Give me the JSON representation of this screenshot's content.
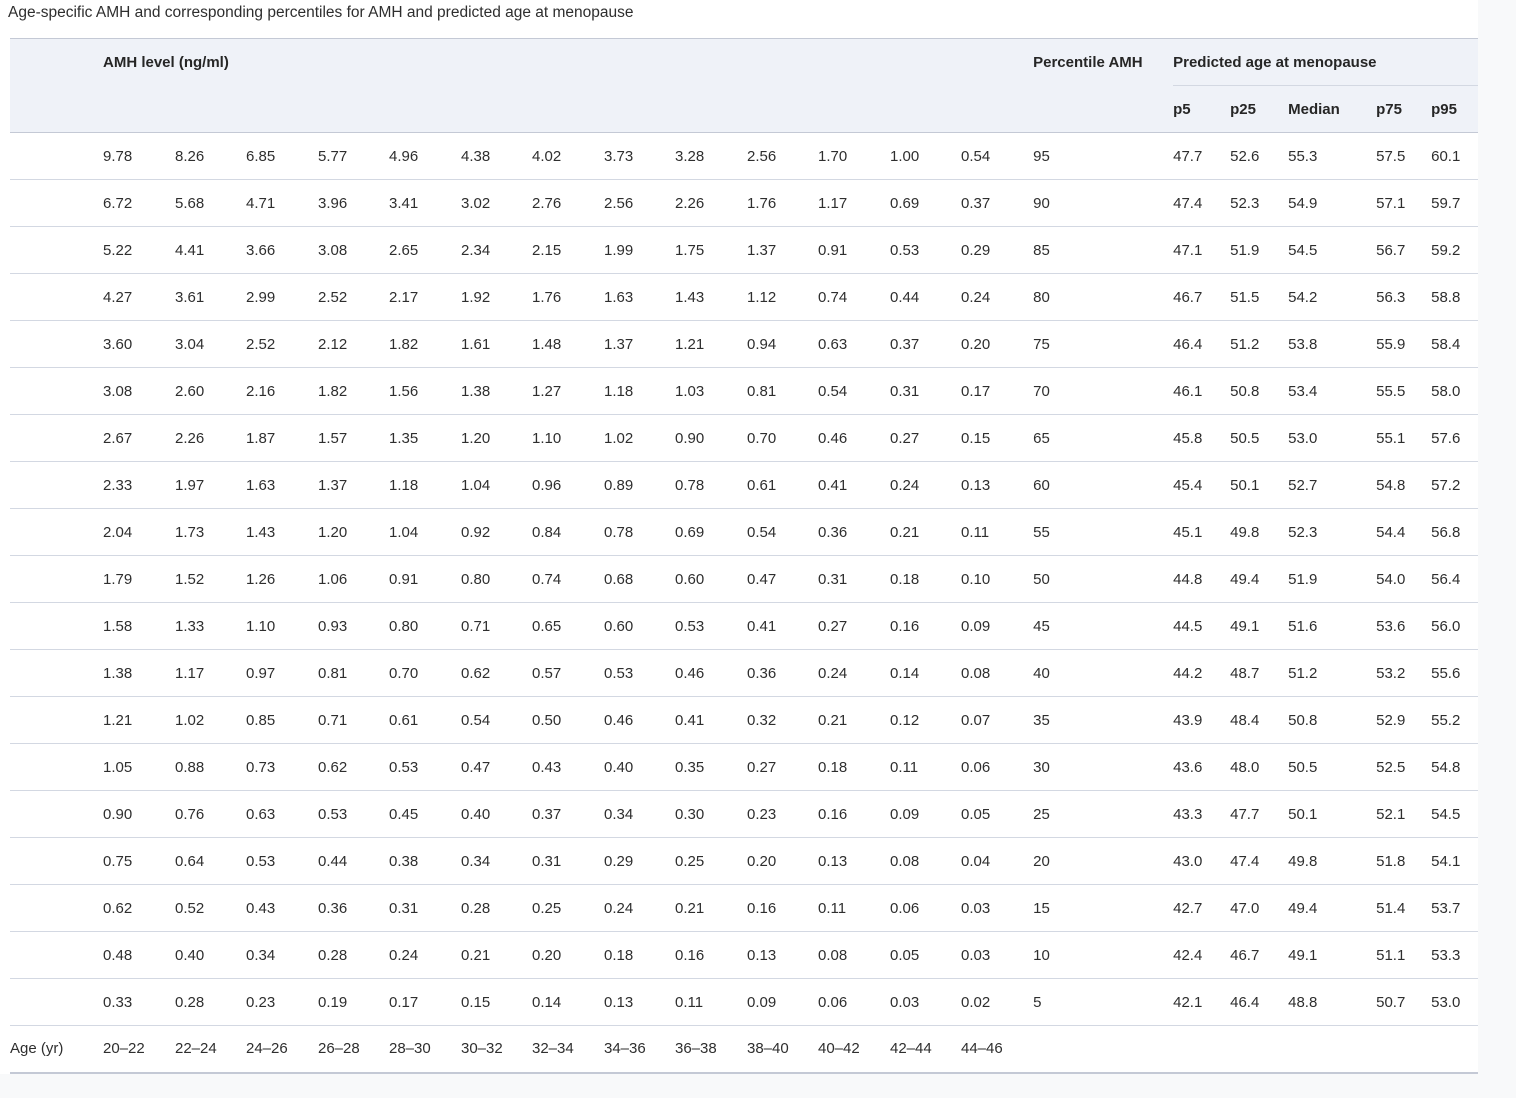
{
  "colors": {
    "page-bg": "#f8f9fa",
    "card-bg": "#ffffff",
    "header-bg": "#eff2f8",
    "row-border": "#d3d8e2",
    "outer-border": "#c4c9d5",
    "text": "#2e2e2e",
    "heading-text": "#262626"
  },
  "chart_data": {
    "type": "table",
    "title": "Age-specific AMH and corresponding percentiles for AMH and predicted age at menopause",
    "header": {
      "amh_group": "AMH level (ng/ml)",
      "percentile": "Percentile AMH",
      "predicted_group": "Predicted age at menopause",
      "predicted_cols": [
        "p5",
        "p25",
        "Median",
        "p75",
        "p95"
      ]
    },
    "age_row_label": "Age (yr)",
    "age_groups": [
      "20–22",
      "22–24",
      "24–26",
      "26–28",
      "28–30",
      "30–32",
      "32–34",
      "34–36",
      "36–38",
      "38–40",
      "40–42",
      "42–44",
      "44–46"
    ],
    "rows": [
      {
        "percentile": "95",
        "amh": [
          "9.78",
          "8.26",
          "6.85",
          "5.77",
          "4.96",
          "4.38",
          "4.02",
          "3.73",
          "3.28",
          "2.56",
          "1.70",
          "1.00",
          "0.54"
        ],
        "predicted": [
          "47.7",
          "52.6",
          "55.3",
          "57.5",
          "60.1"
        ]
      },
      {
        "percentile": "90",
        "amh": [
          "6.72",
          "5.68",
          "4.71",
          "3.96",
          "3.41",
          "3.02",
          "2.76",
          "2.56",
          "2.26",
          "1.76",
          "1.17",
          "0.69",
          "0.37"
        ],
        "predicted": [
          "47.4",
          "52.3",
          "54.9",
          "57.1",
          "59.7"
        ]
      },
      {
        "percentile": "85",
        "amh": [
          "5.22",
          "4.41",
          "3.66",
          "3.08",
          "2.65",
          "2.34",
          "2.15",
          "1.99",
          "1.75",
          "1.37",
          "0.91",
          "0.53",
          "0.29"
        ],
        "predicted": [
          "47.1",
          "51.9",
          "54.5",
          "56.7",
          "59.2"
        ]
      },
      {
        "percentile": "80",
        "amh": [
          "4.27",
          "3.61",
          "2.99",
          "2.52",
          "2.17",
          "1.92",
          "1.76",
          "1.63",
          "1.43",
          "1.12",
          "0.74",
          "0.44",
          "0.24"
        ],
        "predicted": [
          "46.7",
          "51.5",
          "54.2",
          "56.3",
          "58.8"
        ]
      },
      {
        "percentile": "75",
        "amh": [
          "3.60",
          "3.04",
          "2.52",
          "2.12",
          "1.82",
          "1.61",
          "1.48",
          "1.37",
          "1.21",
          "0.94",
          "0.63",
          "0.37",
          "0.20"
        ],
        "predicted": [
          "46.4",
          "51.2",
          "53.8",
          "55.9",
          "58.4"
        ]
      },
      {
        "percentile": "70",
        "amh": [
          "3.08",
          "2.60",
          "2.16",
          "1.82",
          "1.56",
          "1.38",
          "1.27",
          "1.18",
          "1.03",
          "0.81",
          "0.54",
          "0.31",
          "0.17"
        ],
        "predicted": [
          "46.1",
          "50.8",
          "53.4",
          "55.5",
          "58.0"
        ]
      },
      {
        "percentile": "65",
        "amh": [
          "2.67",
          "2.26",
          "1.87",
          "1.57",
          "1.35",
          "1.20",
          "1.10",
          "1.02",
          "0.90",
          "0.70",
          "0.46",
          "0.27",
          "0.15"
        ],
        "predicted": [
          "45.8",
          "50.5",
          "53.0",
          "55.1",
          "57.6"
        ]
      },
      {
        "percentile": "60",
        "amh": [
          "2.33",
          "1.97",
          "1.63",
          "1.37",
          "1.18",
          "1.04",
          "0.96",
          "0.89",
          "0.78",
          "0.61",
          "0.41",
          "0.24",
          "0.13"
        ],
        "predicted": [
          "45.4",
          "50.1",
          "52.7",
          "54.8",
          "57.2"
        ]
      },
      {
        "percentile": "55",
        "amh": [
          "2.04",
          "1.73",
          "1.43",
          "1.20",
          "1.04",
          "0.92",
          "0.84",
          "0.78",
          "0.69",
          "0.54",
          "0.36",
          "0.21",
          "0.11"
        ],
        "predicted": [
          "45.1",
          "49.8",
          "52.3",
          "54.4",
          "56.8"
        ]
      },
      {
        "percentile": "50",
        "amh": [
          "1.79",
          "1.52",
          "1.26",
          "1.06",
          "0.91",
          "0.80",
          "0.74",
          "0.68",
          "0.60",
          "0.47",
          "0.31",
          "0.18",
          "0.10"
        ],
        "predicted": [
          "44.8",
          "49.4",
          "51.9",
          "54.0",
          "56.4"
        ]
      },
      {
        "percentile": "45",
        "amh": [
          "1.58",
          "1.33",
          "1.10",
          "0.93",
          "0.80",
          "0.71",
          "0.65",
          "0.60",
          "0.53",
          "0.41",
          "0.27",
          "0.16",
          "0.09"
        ],
        "predicted": [
          "44.5",
          "49.1",
          "51.6",
          "53.6",
          "56.0"
        ]
      },
      {
        "percentile": "40",
        "amh": [
          "1.38",
          "1.17",
          "0.97",
          "0.81",
          "0.70",
          "0.62",
          "0.57",
          "0.53",
          "0.46",
          "0.36",
          "0.24",
          "0.14",
          "0.08"
        ],
        "predicted": [
          "44.2",
          "48.7",
          "51.2",
          "53.2",
          "55.6"
        ]
      },
      {
        "percentile": "35",
        "amh": [
          "1.21",
          "1.02",
          "0.85",
          "0.71",
          "0.61",
          "0.54",
          "0.50",
          "0.46",
          "0.41",
          "0.32",
          "0.21",
          "0.12",
          "0.07"
        ],
        "predicted": [
          "43.9",
          "48.4",
          "50.8",
          "52.9",
          "55.2"
        ]
      },
      {
        "percentile": "30",
        "amh": [
          "1.05",
          "0.88",
          "0.73",
          "0.62",
          "0.53",
          "0.47",
          "0.43",
          "0.40",
          "0.35",
          "0.27",
          "0.18",
          "0.11",
          "0.06"
        ],
        "predicted": [
          "43.6",
          "48.0",
          "50.5",
          "52.5",
          "54.8"
        ]
      },
      {
        "percentile": "25",
        "amh": [
          "0.90",
          "0.76",
          "0.63",
          "0.53",
          "0.45",
          "0.40",
          "0.37",
          "0.34",
          "0.30",
          "0.23",
          "0.16",
          "0.09",
          "0.05"
        ],
        "predicted": [
          "43.3",
          "47.7",
          "50.1",
          "52.1",
          "54.5"
        ]
      },
      {
        "percentile": "20",
        "amh": [
          "0.75",
          "0.64",
          "0.53",
          "0.44",
          "0.38",
          "0.34",
          "0.31",
          "0.29",
          "0.25",
          "0.20",
          "0.13",
          "0.08",
          "0.04"
        ],
        "predicted": [
          "43.0",
          "47.4",
          "49.8",
          "51.8",
          "54.1"
        ]
      },
      {
        "percentile": "15",
        "amh": [
          "0.62",
          "0.52",
          "0.43",
          "0.36",
          "0.31",
          "0.28",
          "0.25",
          "0.24",
          "0.21",
          "0.16",
          "0.11",
          "0.06",
          "0.03"
        ],
        "predicted": [
          "42.7",
          "47.0",
          "49.4",
          "51.4",
          "53.7"
        ]
      },
      {
        "percentile": "10",
        "amh": [
          "0.48",
          "0.40",
          "0.34",
          "0.28",
          "0.24",
          "0.21",
          "0.20",
          "0.18",
          "0.16",
          "0.13",
          "0.08",
          "0.05",
          "0.03"
        ],
        "predicted": [
          "42.4",
          "46.7",
          "49.1",
          "51.1",
          "53.3"
        ]
      },
      {
        "percentile": "5",
        "amh": [
          "0.33",
          "0.28",
          "0.23",
          "0.19",
          "0.17",
          "0.15",
          "0.14",
          "0.13",
          "0.11",
          "0.09",
          "0.06",
          "0.03",
          "0.02"
        ],
        "predicted": [
          "42.1",
          "46.4",
          "48.8",
          "50.7",
          "53.0"
        ]
      }
    ]
  }
}
